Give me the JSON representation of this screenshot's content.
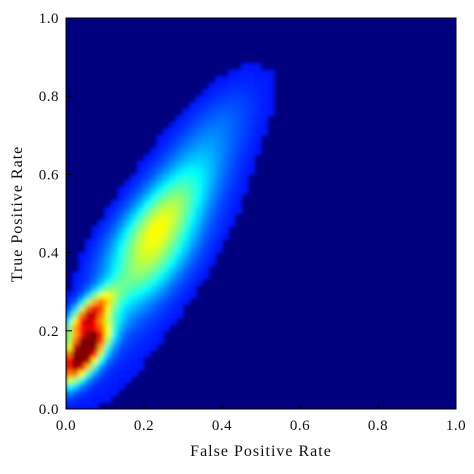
{
  "chart_data": {
    "type": "heatmap",
    "title": "",
    "xlabel": "False Positive Rate",
    "ylabel": "True Positive Rate",
    "xlim": [
      0.0,
      1.0
    ],
    "ylim": [
      0.0,
      1.0
    ],
    "x_ticks": [
      "0.0",
      "0.2",
      "0.4",
      "0.6",
      "0.8",
      "1.0"
    ],
    "y_ticks": [
      "0.0",
      "0.2",
      "0.4",
      "0.6",
      "0.8",
      "1.0"
    ],
    "colormap": "jet",
    "background_color": "#00007f",
    "grid": false,
    "legend": "none",
    "density_peaks": [
      {
        "x": 0.05,
        "y": 0.16,
        "weight": 1.0
      },
      {
        "x": 0.06,
        "y": 0.24,
        "weight": 0.8
      },
      {
        "x": 0.04,
        "y": 0.11,
        "weight": 0.55
      },
      {
        "x": 0.23,
        "y": 0.47,
        "weight": 0.35
      },
      {
        "x": 0.21,
        "y": 0.36,
        "weight": 0.25
      },
      {
        "x": 0.3,
        "y": 0.58,
        "weight": 0.12
      },
      {
        "x": 0.38,
        "y": 0.72,
        "weight": 0.07
      }
    ]
  }
}
